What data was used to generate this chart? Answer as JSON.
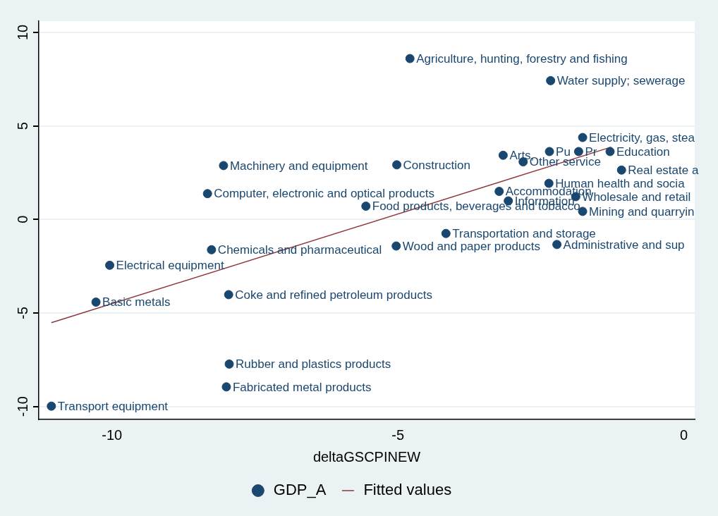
{
  "chart_data": {
    "type": "scatter",
    "xlabel": "deltaGSCPINEW",
    "xlim": [
      -11.28,
      0.19
    ],
    "ylim": [
      -10.69,
      10.6
    ],
    "xticks": [
      -10,
      -5,
      0
    ],
    "yticks": [
      -10,
      -5,
      0,
      5,
      10
    ],
    "grid": "y",
    "legend": "bottom",
    "series": [
      {
        "name": "GDP_A",
        "marker": "circle",
        "color": "#1a476f",
        "x": [
          -4.79,
          -2.33,
          -1.77,
          -3.16,
          -2.35,
          -1.84,
          -1.29,
          -2.81,
          -1.09,
          -2.36,
          -3.23,
          -3.07,
          -1.89,
          -1.77,
          -2.22,
          -4.16,
          -5.03,
          -5.02,
          -8.05,
          -8.33,
          -5.56,
          -8.26,
          -10.04,
          -10.28,
          -7.96,
          -7.95,
          -8.0,
          -11.06
        ],
        "values": [
          8.6,
          7.42,
          4.38,
          3.43,
          3.63,
          3.63,
          3.63,
          3.08,
          2.64,
          1.93,
          1.5,
          0.99,
          1.22,
          0.43,
          -1.34,
          -0.75,
          -1.42,
          2.92,
          2.88,
          1.38,
          0.71,
          -1.62,
          -2.45,
          -4.42,
          -4.02,
          -7.73,
          -8.95,
          -9.98
        ],
        "value_labels": [
          "Agriculture, hunting, forestry and fishing",
          "Water supply; sewerage",
          "Electricity, gas, stea",
          "Arts,",
          "Pu",
          "Pr",
          "Education",
          "Other service",
          "Real estate a",
          "Human health and socia",
          "Accommodation",
          "Information",
          "Wholesale and retail",
          "Mining and quarryin",
          "Administrative and sup",
          "Transportation and storage",
          "Wood and paper products",
          "Construction",
          "Machinery and equipment",
          "Computer, electronic and optical products",
          "Food products, beverages and tobacco",
          "Chemicals and pharmaceutical",
          "Electrical equipment",
          "Basic metals",
          "Coke and refined petroleum products",
          "Rubber and plastics products",
          "Fabricated metal products",
          "Transport equipment"
        ]
      },
      {
        "name": "Fitted values",
        "type": "line",
        "color": "#90353b",
        "x": [
          -11.06,
          -1.27
        ],
        "values": [
          -5.52,
          3.87
        ]
      }
    ]
  }
}
